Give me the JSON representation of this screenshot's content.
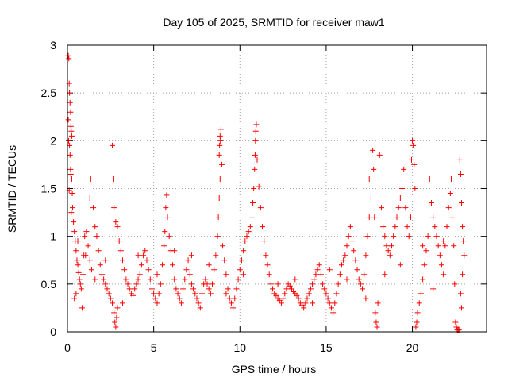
{
  "chart_data": {
    "type": "scatter",
    "title": "Day 105 of 2025, SRMTID for receiver maw1",
    "xlabel": "GPS time / hours",
    "ylabel": "SRMTID / TECUs",
    "xlim": [
      0,
      24.3
    ],
    "ylim": [
      0,
      3
    ],
    "x_ticks": [
      0,
      5,
      10,
      15,
      20
    ],
    "x_tick_labels": [
      "0",
      "5",
      "10",
      "15",
      "20"
    ],
    "y_ticks": [
      0,
      0.5,
      1,
      1.5,
      2,
      2.5,
      3
    ],
    "y_tick_labels": [
      "0",
      "0.5",
      "1",
      "1.5",
      "2",
      "2.5",
      "3"
    ],
    "grid": true,
    "marker": "+",
    "color": "#ff0000",
    "series": [
      {
        "name": "SRMTID",
        "points": [
          [
            0.05,
            2.89
          ],
          [
            0.08,
            2.86
          ],
          [
            0.1,
            2.6
          ],
          [
            0.12,
            2.5
          ],
          [
            0.15,
            2.4
          ],
          [
            0.18,
            2.3
          ],
          [
            0.05,
            2.22
          ],
          [
            0.2,
            2.15
          ],
          [
            0.22,
            2.1
          ],
          [
            0.25,
            2.05
          ],
          [
            0.07,
            2.0
          ],
          [
            0.12,
            1.95
          ],
          [
            0.15,
            1.85
          ],
          [
            0.18,
            1.7
          ],
          [
            0.2,
            1.65
          ],
          [
            0.25,
            1.6
          ],
          [
            0.1,
            1.48
          ],
          [
            0.28,
            1.45
          ],
          [
            0.3,
            1.3
          ],
          [
            0.22,
            1.25
          ],
          [
            0.35,
            1.15
          ],
          [
            0.4,
            1.05
          ],
          [
            0.45,
            0.95
          ],
          [
            0.5,
            0.85
          ],
          [
            0.55,
            0.75
          ],
          [
            0.6,
            0.7
          ],
          [
            0.65,
            0.62
          ],
          [
            0.7,
            0.55
          ],
          [
            0.75,
            0.5
          ],
          [
            0.8,
            0.45
          ],
          [
            0.4,
            0.35
          ],
          [
            0.5,
            0.4
          ],
          [
            0.85,
            0.25
          ],
          [
            0.9,
            0.6
          ],
          [
            0.95,
            0.8
          ],
          [
            1.0,
            1.0
          ],
          [
            1.1,
            1.05
          ],
          [
            1.2,
            0.9
          ],
          [
            1.3,
            0.75
          ],
          [
            1.4,
            0.65
          ],
          [
            1.3,
            1.4
          ],
          [
            1.35,
            1.6
          ],
          [
            1.5,
            1.3
          ],
          [
            1.6,
            1.1
          ],
          [
            1.7,
            1.0
          ],
          [
            1.8,
            0.85
          ],
          [
            1.9,
            0.7
          ],
          [
            2.0,
            0.6
          ],
          [
            2.1,
            0.55
          ],
          [
            2.2,
            0.5
          ],
          [
            2.3,
            0.45
          ],
          [
            2.4,
            0.4
          ],
          [
            2.5,
            0.35
          ],
          [
            2.6,
            0.3
          ],
          [
            2.7,
            0.2
          ],
          [
            2.75,
            0.1
          ],
          [
            2.8,
            0.05
          ],
          [
            2.85,
            0.15
          ],
          [
            2.9,
            0.25
          ],
          [
            2.6,
            1.95
          ],
          [
            2.65,
            1.6
          ],
          [
            2.7,
            1.3
          ],
          [
            2.8,
            1.15
          ],
          [
            2.9,
            1.1
          ],
          [
            3.0,
            0.95
          ],
          [
            3.1,
            0.85
          ],
          [
            3.2,
            0.75
          ],
          [
            3.3,
            0.65
          ],
          [
            3.4,
            0.55
          ],
          [
            3.5,
            0.5
          ],
          [
            3.6,
            0.45
          ],
          [
            3.7,
            0.4
          ],
          [
            3.8,
            0.38
          ],
          [
            3.9,
            0.45
          ],
          [
            4.0,
            0.5
          ],
          [
            4.1,
            0.55
          ],
          [
            4.2,
            0.6
          ],
          [
            4.3,
            0.7
          ],
          [
            4.4,
            0.8
          ],
          [
            4.5,
            0.85
          ],
          [
            4.6,
            0.75
          ],
          [
            4.7,
            0.65
          ],
          [
            4.8,
            0.55
          ],
          [
            4.9,
            0.45
          ],
          [
            5.0,
            0.4
          ],
          [
            5.1,
            0.35
          ],
          [
            5.2,
            0.3
          ],
          [
            5.3,
            0.4
          ],
          [
            5.4,
            0.5
          ],
          [
            5.5,
            0.7
          ],
          [
            5.6,
            0.9
          ],
          [
            5.65,
            1.05
          ],
          [
            5.7,
            1.3
          ],
          [
            5.75,
            1.43
          ],
          [
            5.8,
            1.2
          ],
          [
            5.9,
            1.0
          ],
          [
            6.0,
            0.85
          ],
          [
            6.1,
            0.7
          ],
          [
            6.2,
            0.55
          ],
          [
            6.3,
            0.45
          ],
          [
            6.4,
            0.4
          ],
          [
            6.5,
            0.35
          ],
          [
            6.6,
            0.3
          ],
          [
            6.7,
            0.45
          ],
          [
            6.8,
            0.55
          ],
          [
            6.9,
            0.65
          ],
          [
            7.0,
            0.75
          ],
          [
            7.1,
            0.6
          ],
          [
            7.2,
            0.5
          ],
          [
            7.3,
            0.45
          ],
          [
            7.4,
            0.4
          ],
          [
            7.5,
            0.35
          ],
          [
            7.6,
            0.3
          ],
          [
            7.7,
            0.25
          ],
          [
            7.8,
            0.4
          ],
          [
            7.9,
            0.5
          ],
          [
            8.0,
            0.55
          ],
          [
            8.1,
            0.5
          ],
          [
            8.2,
            0.45
          ],
          [
            8.3,
            0.4
          ],
          [
            8.4,
            0.5
          ],
          [
            8.5,
            0.65
          ],
          [
            8.6,
            0.8
          ],
          [
            8.7,
            1.0
          ],
          [
            8.75,
            1.2
          ],
          [
            8.8,
            1.4
          ],
          [
            8.85,
            1.6
          ],
          [
            8.8,
            1.85
          ],
          [
            8.82,
            1.95
          ],
          [
            8.85,
            2.05
          ],
          [
            8.9,
            2.12
          ],
          [
            8.87,
            2.0
          ],
          [
            8.95,
            1.75
          ],
          [
            9.0,
            0.9
          ],
          [
            9.1,
            0.75
          ],
          [
            9.2,
            0.6
          ],
          [
            9.3,
            0.45
          ],
          [
            9.4,
            0.35
          ],
          [
            9.5,
            0.3
          ],
          [
            9.6,
            0.25
          ],
          [
            9.7,
            0.35
          ],
          [
            9.8,
            0.45
          ],
          [
            9.9,
            0.55
          ],
          [
            10.0,
            0.65
          ],
          [
            10.1,
            0.75
          ],
          [
            10.2,
            0.85
          ],
          [
            10.3,
            0.95
          ],
          [
            10.4,
            1.0
          ],
          [
            10.5,
            1.05
          ],
          [
            10.6,
            1.1
          ],
          [
            10.7,
            1.2
          ],
          [
            10.75,
            1.35
          ],
          [
            10.8,
            1.5
          ],
          [
            10.85,
            1.7
          ],
          [
            10.88,
            1.85
          ],
          [
            10.9,
            2.0
          ],
          [
            10.92,
            2.1
          ],
          [
            10.95,
            2.17
          ],
          [
            11.0,
            1.8
          ],
          [
            11.1,
            1.52
          ],
          [
            11.2,
            1.3
          ],
          [
            11.3,
            1.1
          ],
          [
            11.4,
            0.95
          ],
          [
            11.5,
            0.8
          ],
          [
            11.6,
            0.7
          ],
          [
            11.7,
            0.6
          ],
          [
            11.8,
            0.5
          ],
          [
            11.9,
            0.45
          ],
          [
            12.0,
            0.4
          ],
          [
            12.1,
            0.38
          ],
          [
            12.2,
            0.35
          ],
          [
            12.3,
            0.33
          ],
          [
            12.4,
            0.3
          ],
          [
            12.5,
            0.35
          ],
          [
            12.6,
            0.4
          ],
          [
            12.7,
            0.45
          ],
          [
            12.8,
            0.5
          ],
          [
            12.9,
            0.48
          ],
          [
            13.0,
            0.45
          ],
          [
            13.1,
            0.42
          ],
          [
            13.2,
            0.4
          ],
          [
            13.3,
            0.38
          ],
          [
            13.4,
            0.35
          ],
          [
            13.5,
            0.3
          ],
          [
            13.6,
            0.28
          ],
          [
            13.7,
            0.25
          ],
          [
            13.8,
            0.3
          ],
          [
            13.9,
            0.35
          ],
          [
            14.0,
            0.4
          ],
          [
            14.1,
            0.45
          ],
          [
            14.2,
            0.5
          ],
          [
            14.3,
            0.55
          ],
          [
            14.4,
            0.6
          ],
          [
            14.5,
            0.65
          ],
          [
            14.6,
            0.7
          ],
          [
            14.7,
            0.6
          ],
          [
            14.8,
            0.5
          ],
          [
            14.9,
            0.45
          ],
          [
            15.0,
            0.4
          ],
          [
            15.1,
            0.35
          ],
          [
            15.2,
            0.3
          ],
          [
            15.3,
            0.25
          ],
          [
            15.4,
            0.2
          ],
          [
            15.5,
            0.3
          ],
          [
            15.6,
            0.4
          ],
          [
            15.7,
            0.5
          ],
          [
            15.8,
            0.6
          ],
          [
            15.9,
            0.7
          ],
          [
            16.0,
            0.75
          ],
          [
            16.1,
            0.8
          ],
          [
            16.2,
            0.9
          ],
          [
            16.3,
            1.0
          ],
          [
            16.4,
            1.1
          ],
          [
            16.5,
            0.95
          ],
          [
            16.6,
            0.85
          ],
          [
            16.7,
            0.75
          ],
          [
            16.8,
            0.65
          ],
          [
            16.9,
            0.55
          ],
          [
            17.0,
            0.5
          ],
          [
            17.1,
            0.45
          ],
          [
            17.2,
            0.6
          ],
          [
            17.3,
            0.8
          ],
          [
            17.4,
            1.0
          ],
          [
            17.5,
            1.2
          ],
          [
            17.5,
            1.6
          ],
          [
            17.6,
            1.4
          ],
          [
            17.7,
            1.9
          ],
          [
            17.75,
            1.7
          ],
          [
            17.8,
            1.2
          ],
          [
            17.85,
            0.2
          ],
          [
            17.9,
            0.1
          ],
          [
            17.95,
            0.05
          ],
          [
            18.0,
            0.3
          ],
          [
            18.1,
            1.85
          ],
          [
            18.2,
            1.3
          ],
          [
            18.3,
            1.1
          ],
          [
            18.4,
            1.0
          ],
          [
            18.5,
            0.9
          ],
          [
            18.6,
            0.85
          ],
          [
            18.7,
            0.8
          ],
          [
            18.8,
            0.9
          ],
          [
            18.9,
            1.0
          ],
          [
            19.0,
            1.1
          ],
          [
            19.1,
            1.2
          ],
          [
            19.2,
            1.3
          ],
          [
            19.3,
            1.4
          ],
          [
            19.4,
            1.5
          ],
          [
            19.5,
            1.7
          ],
          [
            19.6,
            1.3
          ],
          [
            19.7,
            1.1
          ],
          [
            19.8,
            1.0
          ],
          [
            19.9,
            1.2
          ],
          [
            19.95,
            1.8
          ],
          [
            20.0,
            2.0
          ],
          [
            20.05,
            1.95
          ],
          [
            20.1,
            1.75
          ],
          [
            20.15,
            1.5
          ],
          [
            20.2,
            0.05
          ],
          [
            20.25,
            0.1
          ],
          [
            20.3,
            0.2
          ],
          [
            20.4,
            0.3
          ],
          [
            20.5,
            0.4
          ],
          [
            20.6,
            0.55
          ],
          [
            20.7,
            0.7
          ],
          [
            20.8,
            0.85
          ],
          [
            20.9,
            1.0
          ],
          [
            21.0,
            1.6
          ],
          [
            21.1,
            1.35
          ],
          [
            21.2,
            1.2
          ],
          [
            21.3,
            1.1
          ],
          [
            21.4,
            1.0
          ],
          [
            21.5,
            0.9
          ],
          [
            21.6,
            0.8
          ],
          [
            21.7,
            0.7
          ],
          [
            21.8,
            0.6
          ],
          [
            21.9,
            0.9
          ],
          [
            22.0,
            1.1
          ],
          [
            22.1,
            1.3
          ],
          [
            22.2,
            1.45
          ],
          [
            22.25,
            1.6
          ],
          [
            22.3,
            1.2
          ],
          [
            22.4,
            0.9
          ],
          [
            22.45,
            0.5
          ],
          [
            22.5,
            0.1
          ],
          [
            22.55,
            0.05
          ],
          [
            22.6,
            0.02
          ],
          [
            22.65,
            0.02
          ],
          [
            22.7,
            0.02
          ],
          [
            22.75,
            1.8
          ],
          [
            22.8,
            1.65
          ],
          [
            22.85,
            1.35
          ],
          [
            22.9,
            1.1
          ],
          [
            22.95,
            0.95
          ],
          [
            23.0,
            0.8
          ],
          [
            22.9,
            0.6
          ],
          [
            22.8,
            0.4
          ],
          [
            22.85,
            0.25
          ],
          [
            0.6,
            0.95
          ],
          [
            1.05,
            0.8
          ],
          [
            1.6,
            0.55
          ],
          [
            2.2,
            0.75
          ],
          [
            3.2,
            0.3
          ],
          [
            4.1,
            0.8
          ],
          [
            5.2,
            0.6
          ],
          [
            6.2,
            0.85
          ],
          [
            7.2,
            0.8
          ],
          [
            8.2,
            0.7
          ],
          [
            9.2,
            0.4
          ],
          [
            10.2,
            0.6
          ],
          [
            12.2,
            0.5
          ],
          [
            13.2,
            0.55
          ],
          [
            14.2,
            0.3
          ],
          [
            15.2,
            0.65
          ],
          [
            16.2,
            0.55
          ],
          [
            17.3,
            0.35
          ],
          [
            18.4,
            0.6
          ],
          [
            19.3,
            0.7
          ],
          [
            21.2,
            0.45
          ],
          [
            21.8,
            0.95
          ],
          [
            20.6,
            0.9
          ]
        ]
      }
    ]
  }
}
